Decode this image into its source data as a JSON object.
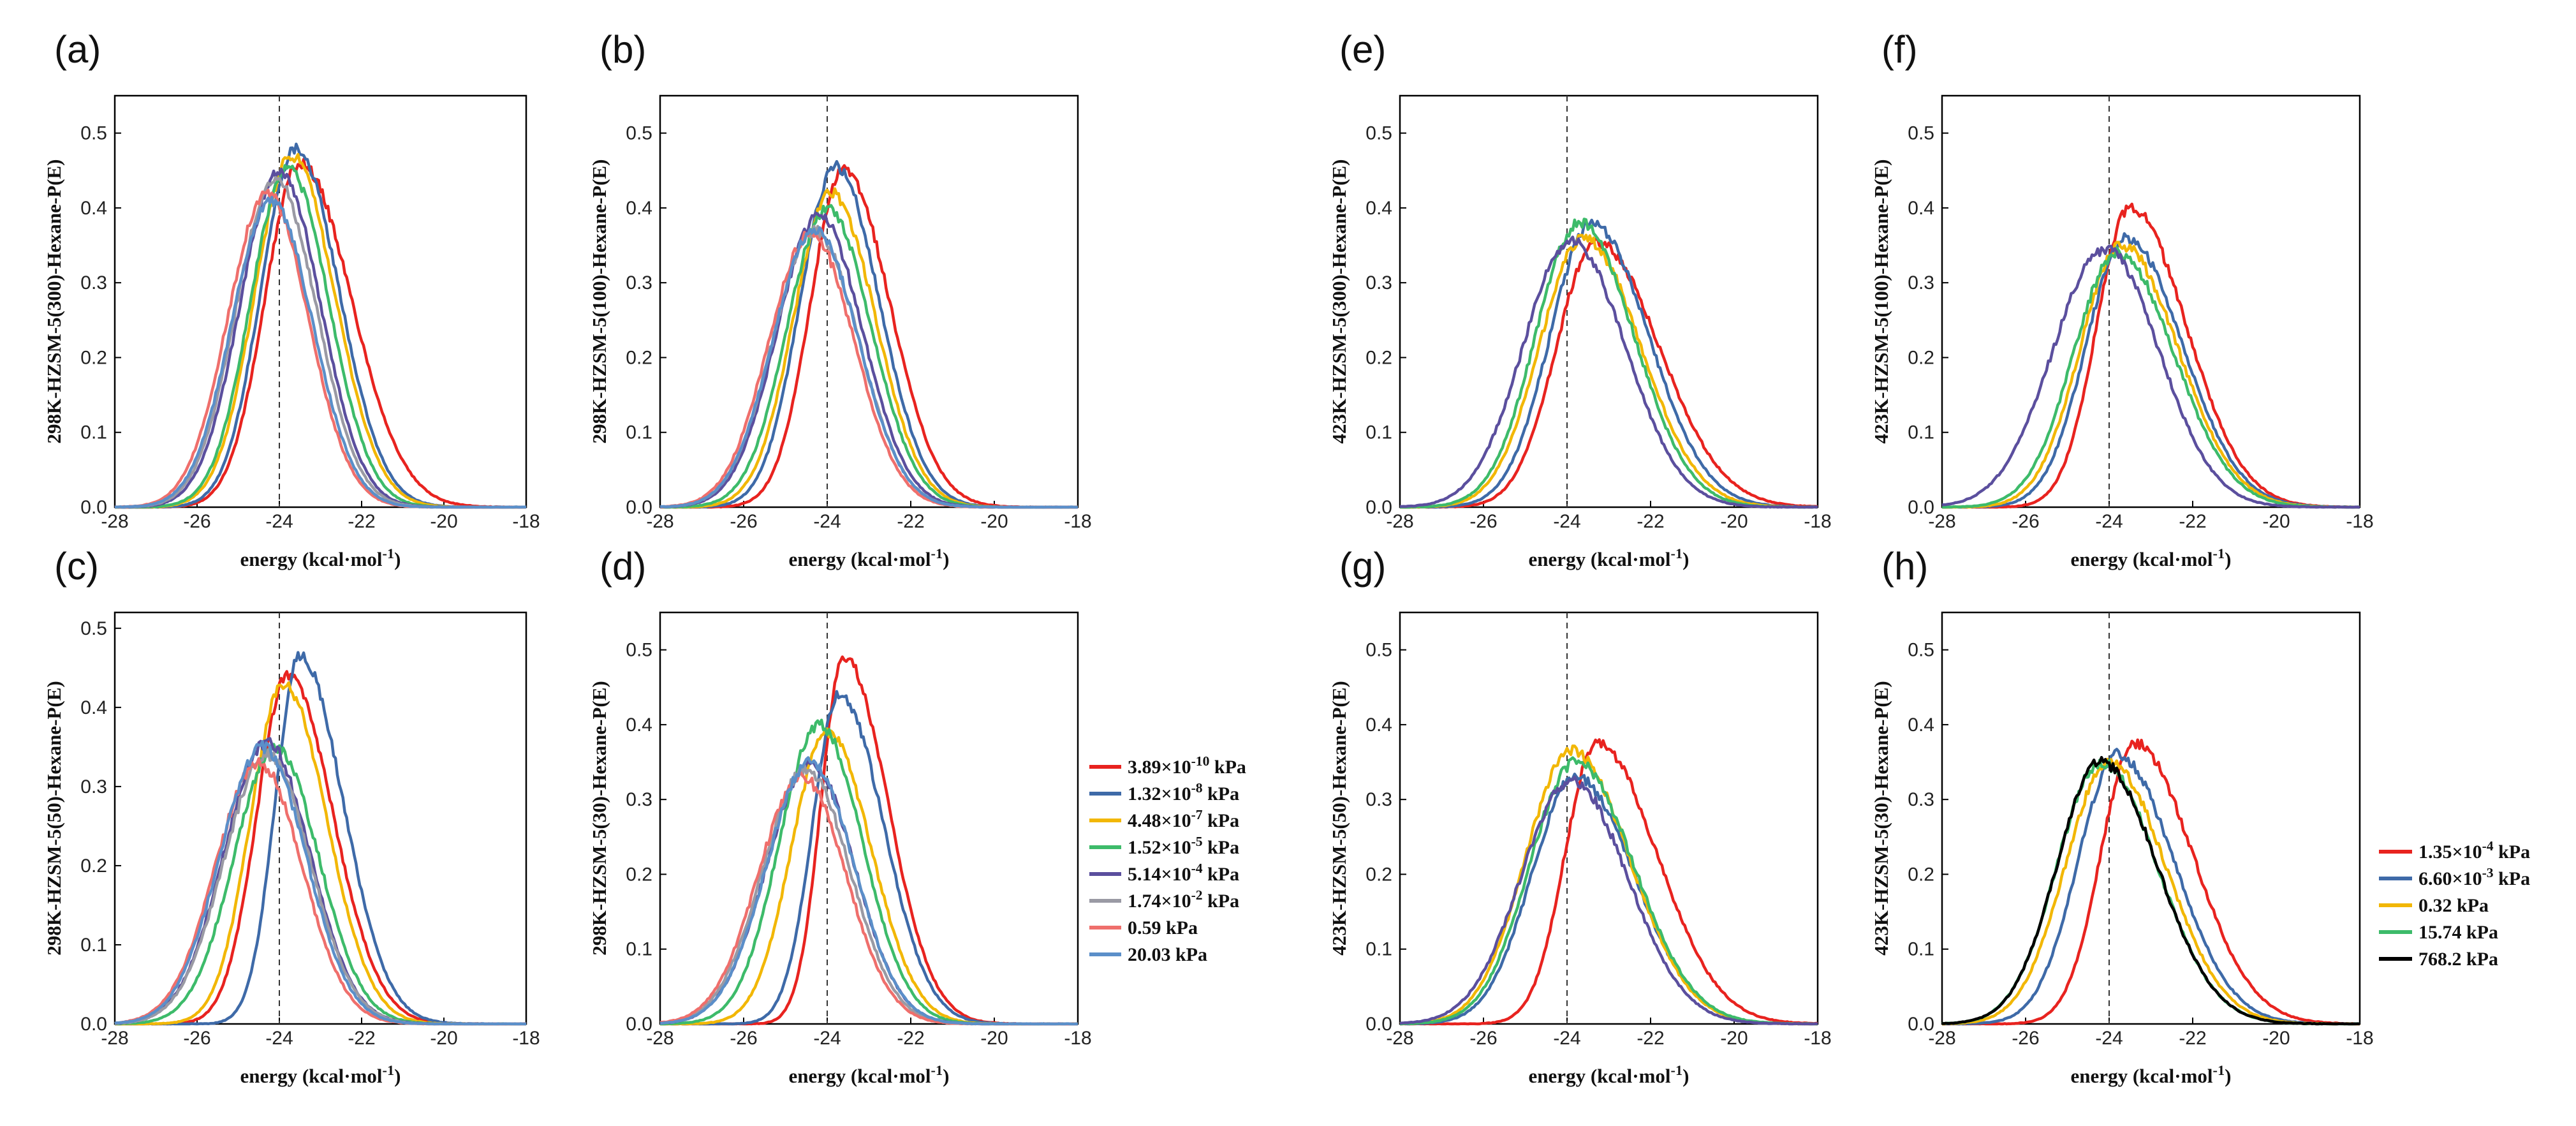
{
  "chart_data": [
    {
      "id": "a",
      "panel_label": "(a)",
      "type": "line",
      "ylabel": "298K-HZSM-5(300)-Hexane-P(E)",
      "xlabel": "energy (kcal·mol⁻¹)",
      "xlim": [
        -28,
        -18
      ],
      "ylim": [
        0,
        0.55
      ],
      "xticks": [
        "-28",
        "-26",
        "-24",
        "-22",
        "-20",
        "-18"
      ],
      "yticks": [
        "0.0",
        "0.1",
        "0.2",
        "0.3",
        "0.4",
        "0.5"
      ],
      "reference_line_x": -24,
      "series": [
        {
          "name": "3.89×10⁻¹⁰ kPa",
          "color": "#e8231f",
          "peak_x": -23.5,
          "peak_y": 0.46,
          "sigma_left": 0.85,
          "sigma_right": 1.25
        },
        {
          "name": "1.32×10⁻⁸ kPa",
          "color": "#3e6aa8",
          "peak_x": -23.6,
          "peak_y": 0.48,
          "sigma_left": 0.85,
          "sigma_right": 1.05
        },
        {
          "name": "4.48×10⁻⁷ kPa",
          "color": "#f2b705",
          "peak_x": -23.7,
          "peak_y": 0.47,
          "sigma_left": 0.9,
          "sigma_right": 1.05
        },
        {
          "name": "1.52×10⁻⁵ kPa",
          "color": "#3dbb6a",
          "peak_x": -23.8,
          "peak_y": 0.455,
          "sigma_left": 0.9,
          "sigma_right": 1.0
        },
        {
          "name": "5.14×10⁻⁴ kPa",
          "color": "#5b4f9e",
          "peak_x": -24.0,
          "peak_y": 0.45,
          "sigma_left": 0.95,
          "sigma_right": 1.0
        },
        {
          "name": "1.74×10⁻² kPa",
          "color": "#9a9aa4",
          "peak_x": -24.1,
          "peak_y": 0.44,
          "sigma_left": 0.95,
          "sigma_right": 1.0
        },
        {
          "name": "0.59 kPa",
          "color": "#ef6f6c",
          "peak_x": -24.3,
          "peak_y": 0.42,
          "sigma_left": 0.95,
          "sigma_right": 1.0
        },
        {
          "name": "20.03 kPa",
          "color": "#5b8fc9",
          "peak_x": -24.2,
          "peak_y": 0.41,
          "sigma_left": 0.95,
          "sigma_right": 1.0
        }
      ]
    },
    {
      "id": "b",
      "panel_label": "(b)",
      "type": "line",
      "ylabel": "298K-HZSM-5(100)-Hexane-P(E)",
      "xlabel": "energy (kcal·mol⁻¹)",
      "xlim": [
        -28,
        -18
      ],
      "ylim": [
        0,
        0.55
      ],
      "xticks": [
        "-28",
        "-26",
        "-24",
        "-22",
        "-20",
        "-18"
      ],
      "yticks": [
        "0.0",
        "0.1",
        "0.2",
        "0.3",
        "0.4",
        "0.5"
      ],
      "reference_line_x": -24,
      "series": [
        {
          "name": "3.89×10⁻¹⁰ kPa",
          "color": "#e8231f",
          "peak_x": -23.6,
          "peak_y": 0.45,
          "sigma_left": 0.8,
          "sigma_right": 1.1
        },
        {
          "name": "1.32×10⁻⁸ kPa",
          "color": "#3e6aa8",
          "peak_x": -23.8,
          "peak_y": 0.455,
          "sigma_left": 0.85,
          "sigma_right": 1.05
        },
        {
          "name": "4.48×10⁻⁷ kPa",
          "color": "#f2b705",
          "peak_x": -23.9,
          "peak_y": 0.42,
          "sigma_left": 0.9,
          "sigma_right": 1.05
        },
        {
          "name": "1.52×10⁻⁵ kPa",
          "color": "#3dbb6a",
          "peak_x": -24.0,
          "peak_y": 0.4,
          "sigma_left": 0.95,
          "sigma_right": 1.05
        },
        {
          "name": "5.14×10⁻⁴ kPa",
          "color": "#5b4f9e",
          "peak_x": -24.2,
          "peak_y": 0.39,
          "sigma_left": 1.0,
          "sigma_right": 1.05
        },
        {
          "name": "1.74×10⁻² kPa",
          "color": "#9a9aa4",
          "peak_x": -24.3,
          "peak_y": 0.37,
          "sigma_left": 1.0,
          "sigma_right": 1.05
        },
        {
          "name": "0.59 kPa",
          "color": "#ef6f6c",
          "peak_x": -24.4,
          "peak_y": 0.365,
          "sigma_left": 1.0,
          "sigma_right": 1.05
        },
        {
          "name": "20.03 kPa",
          "color": "#5b8fc9",
          "peak_x": -24.3,
          "peak_y": 0.37,
          "sigma_left": 1.0,
          "sigma_right": 1.05
        }
      ]
    },
    {
      "id": "c",
      "panel_label": "(c)",
      "type": "line",
      "ylabel": "298K-HZSM-5(50)-Hexane-P(E)",
      "xlabel": "energy (kcal·mol⁻¹)",
      "xlim": [
        -28,
        -18
      ],
      "ylim": [
        0,
        0.52
      ],
      "xticks": [
        "-28",
        "-26",
        "-24",
        "-22",
        "-20",
        "-18"
      ],
      "yticks": [
        "0.0",
        "0.1",
        "0.2",
        "0.3",
        "0.4",
        "0.5"
      ],
      "reference_line_x": -24,
      "series": [
        {
          "name": "3.89×10⁻¹⁰ kPa",
          "color": "#e8231f",
          "peak_x": -23.8,
          "peak_y": 0.44,
          "sigma_left": 0.75,
          "sigma_right": 1.1
        },
        {
          "name": "1.32×10⁻⁸ kPa",
          "color": "#3e6aa8",
          "peak_x": -23.5,
          "peak_y": 0.465,
          "sigma_left": 0.6,
          "sigma_right": 1.05
        },
        {
          "name": "4.48×10⁻⁷ kPa",
          "color": "#f2b705",
          "peak_x": -23.9,
          "peak_y": 0.43,
          "sigma_left": 0.8,
          "sigma_right": 1.05
        },
        {
          "name": "1.52×10⁻⁵ kPa",
          "color": "#3dbb6a",
          "peak_x": -24.1,
          "peak_y": 0.35,
          "sigma_left": 1.0,
          "sigma_right": 1.05
        },
        {
          "name": "5.14×10⁻⁴ kPa",
          "color": "#5b4f9e",
          "peak_x": -24.3,
          "peak_y": 0.355,
          "sigma_left": 1.05,
          "sigma_right": 1.05
        },
        {
          "name": "1.74×10⁻² kPa",
          "color": "#9a9aa4",
          "peak_x": -24.3,
          "peak_y": 0.34,
          "sigma_left": 1.05,
          "sigma_right": 1.05
        },
        {
          "name": "0.59 kPa",
          "color": "#ef6f6c",
          "peak_x": -24.5,
          "peak_y": 0.33,
          "sigma_left": 1.05,
          "sigma_right": 1.05
        },
        {
          "name": "20.03 kPa",
          "color": "#5b8fc9",
          "peak_x": -24.4,
          "peak_y": 0.35,
          "sigma_left": 1.05,
          "sigma_right": 1.05
        }
      ]
    },
    {
      "id": "d",
      "panel_label": "(d)",
      "type": "line",
      "ylabel": "298K-HZSM-5(30)-Hexane-P(E)",
      "xlabel": "energy (kcal·mol⁻¹)",
      "xlim": [
        -28,
        -18
      ],
      "ylim": [
        0,
        0.55
      ],
      "xticks": [
        "-28",
        "-26",
        "-24",
        "-22",
        "-20",
        "-18"
      ],
      "yticks": [
        "0.0",
        "0.1",
        "0.2",
        "0.3",
        "0.4",
        "0.5"
      ],
      "reference_line_x": -24,
      "series": [
        {
          "name": "3.89×10⁻¹⁰ kPa",
          "color": "#e8231f",
          "peak_x": -23.6,
          "peak_y": 0.49,
          "sigma_left": 0.55,
          "sigma_right": 1.05
        },
        {
          "name": "1.32×10⁻⁸ kPa",
          "color": "#3e6aa8",
          "peak_x": -23.7,
          "peak_y": 0.44,
          "sigma_left": 0.65,
          "sigma_right": 1.05
        },
        {
          "name": "4.48×10⁻⁷ kPa",
          "color": "#f2b705",
          "peak_x": -24.0,
          "peak_y": 0.39,
          "sigma_left": 0.85,
          "sigma_right": 1.05
        },
        {
          "name": "1.52×10⁻⁵ kPa",
          "color": "#3dbb6a",
          "peak_x": -24.2,
          "peak_y": 0.4,
          "sigma_left": 0.95,
          "sigma_right": 1.05
        },
        {
          "name": "5.14×10⁻⁴ kPa",
          "color": "#5b4f9e",
          "peak_x": -24.4,
          "peak_y": 0.35,
          "sigma_left": 1.05,
          "sigma_right": 1.05
        },
        {
          "name": "1.74×10⁻² kPa",
          "color": "#9a9aa4",
          "peak_x": -24.5,
          "peak_y": 0.34,
          "sigma_left": 1.05,
          "sigma_right": 1.05
        },
        {
          "name": "0.59 kPa",
          "color": "#ef6f6c",
          "peak_x": -24.6,
          "peak_y": 0.33,
          "sigma_left": 1.05,
          "sigma_right": 1.05
        },
        {
          "name": "20.03 kPa",
          "color": "#5b8fc9",
          "peak_x": -24.4,
          "peak_y": 0.35,
          "sigma_left": 1.05,
          "sigma_right": 1.05
        }
      ]
    },
    {
      "id": "e",
      "panel_label": "(e)",
      "type": "line",
      "ylabel": "423K-HZSM-5(300)-Hexane-P(E)",
      "xlabel": "energy (kcal·mol⁻¹)",
      "xlim": [
        -28,
        -18
      ],
      "ylim": [
        0,
        0.55
      ],
      "xticks": [
        "-28",
        "-26",
        "-24",
        "-22",
        "-20",
        "-18"
      ],
      "yticks": [
        "0.0",
        "0.1",
        "0.2",
        "0.3",
        "0.4",
        "0.5"
      ],
      "reference_line_x": -24,
      "series": [
        {
          "name": "1.35×10⁻⁴ kPa",
          "color": "#e8231f",
          "peak_x": -23.3,
          "peak_y": 0.355,
          "sigma_left": 0.95,
          "sigma_right": 1.5
        },
        {
          "name": "6.60×10⁻³ kPa",
          "color": "#3e6aa8",
          "peak_x": -23.4,
          "peak_y": 0.38,
          "sigma_left": 1.0,
          "sigma_right": 1.35
        },
        {
          "name": "0.32 kPa",
          "color": "#f2b705",
          "peak_x": -23.6,
          "peak_y": 0.36,
          "sigma_left": 1.05,
          "sigma_right": 1.35
        },
        {
          "name": "15.74 kPa",
          "color": "#3dbb6a",
          "peak_x": -23.7,
          "peak_y": 0.38,
          "sigma_left": 1.05,
          "sigma_right": 1.3
        },
        {
          "name": "768.2 kPa",
          "color": "#5b4f9e",
          "peak_x": -23.9,
          "peak_y": 0.355,
          "sigma_left": 1.15,
          "sigma_right": 1.3
        }
      ]
    },
    {
      "id": "f",
      "panel_label": "(f)",
      "type": "line",
      "ylabel": "423K-HZSM-5(100)-Hexane-P(E)",
      "xlabel": "energy (kcal·mol⁻¹)",
      "xlim": [
        -28,
        -18
      ],
      "ylim": [
        0,
        0.55
      ],
      "xticks": [
        "-28",
        "-26",
        "-24",
        "-22",
        "-20",
        "-18"
      ],
      "yticks": [
        "0.0",
        "0.1",
        "0.2",
        "0.3",
        "0.4",
        "0.5"
      ],
      "reference_line_x": -24,
      "series": [
        {
          "name": "1.35×10⁻⁴ kPa",
          "color": "#e8231f",
          "peak_x": -23.5,
          "peak_y": 0.4,
          "sigma_left": 0.8,
          "sigma_right": 1.35
        },
        {
          "name": "6.60×10⁻³ kPa",
          "color": "#3e6aa8",
          "peak_x": -23.6,
          "peak_y": 0.36,
          "sigma_left": 0.95,
          "sigma_right": 1.35
        },
        {
          "name": "0.32 kPa",
          "color": "#f2b705",
          "peak_x": -23.7,
          "peak_y": 0.35,
          "sigma_left": 1.0,
          "sigma_right": 1.35
        },
        {
          "name": "15.74 kPa",
          "color": "#3dbb6a",
          "peak_x": -23.8,
          "peak_y": 0.34,
          "sigma_left": 1.05,
          "sigma_right": 1.35
        },
        {
          "name": "768.2 kPa",
          "color": "#5b4f9e",
          "peak_x": -24.1,
          "peak_y": 0.345,
          "sigma_left": 1.25,
          "sigma_right": 1.3
        }
      ]
    },
    {
      "id": "g",
      "panel_label": "(g)",
      "type": "line",
      "ylabel": "423K-HZSM-5(50)-Hexane-P(E)",
      "xlabel": "energy (kcal·mol⁻¹)",
      "xlim": [
        -28,
        -18
      ],
      "ylim": [
        0,
        0.55
      ],
      "xticks": [
        "-28",
        "-26",
        "-24",
        "-22",
        "-20",
        "-18"
      ],
      "yticks": [
        "0.0",
        "0.1",
        "0.2",
        "0.3",
        "0.4",
        "0.5"
      ],
      "reference_line_x": -24,
      "series": [
        {
          "name": "1.35×10⁻⁴ kPa",
          "color": "#e8231f",
          "peak_x": -23.3,
          "peak_y": 0.375,
          "sigma_left": 0.75,
          "sigma_right": 1.45
        },
        {
          "name": "6.60×10⁻³ kPa",
          "color": "#3e6aa8",
          "peak_x": -23.8,
          "peak_y": 0.33,
          "sigma_left": 1.05,
          "sigma_right": 1.4
        },
        {
          "name": "0.32 kPa",
          "color": "#f2b705",
          "peak_x": -23.9,
          "peak_y": 0.365,
          "sigma_left": 1.1,
          "sigma_right": 1.4
        },
        {
          "name": "15.74 kPa",
          "color": "#3dbb6a",
          "peak_x": -23.8,
          "peak_y": 0.35,
          "sigma_left": 1.1,
          "sigma_right": 1.4
        },
        {
          "name": "768.2 kPa",
          "color": "#5b4f9e",
          "peak_x": -23.9,
          "peak_y": 0.325,
          "sigma_left": 1.2,
          "sigma_right": 1.35
        }
      ]
    },
    {
      "id": "h",
      "panel_label": "(h)",
      "type": "line",
      "ylabel": "423K-HZSM-5(30)-Hexane-P(E)",
      "xlabel": "energy (kcal·mol⁻¹)",
      "xlim": [
        -28,
        -18
      ],
      "ylim": [
        0,
        0.55
      ],
      "xticks": [
        "-28",
        "-26",
        "-24",
        "-22",
        "-20",
        "-18"
      ],
      "yticks": [
        "0.0",
        "0.1",
        "0.2",
        "0.3",
        "0.4",
        "0.5"
      ],
      "reference_line_x": -24,
      "series": [
        {
          "name": "1.35×10⁻⁴ kPa",
          "color": "#e8231f",
          "peak_x": -23.4,
          "peak_y": 0.375,
          "sigma_left": 0.8,
          "sigma_right": 1.4
        },
        {
          "name": "6.60×10⁻³ kPa",
          "color": "#3e6aa8",
          "peak_x": -23.8,
          "peak_y": 0.36,
          "sigma_left": 0.95,
          "sigma_right": 1.35
        },
        {
          "name": "0.32 kPa",
          "color": "#f2b705",
          "peak_x": -24.0,
          "peak_y": 0.35,
          "sigma_left": 1.05,
          "sigma_right": 1.35
        },
        {
          "name": "15.74 kPa",
          "color": "#3dbb6a",
          "peak_x": -24.2,
          "peak_y": 0.35,
          "sigma_left": 1.05,
          "sigma_right": 1.35
        },
        {
          "name": "768.2 kPa",
          "color": "#000000",
          "peak_x": -24.2,
          "peak_y": 0.35,
          "sigma_left": 1.05,
          "sigma_right": 1.35
        }
      ]
    }
  ],
  "legends": {
    "298K": {
      "entries": [
        {
          "label": "3.89×10⁻¹⁰ kPa",
          "color": "#e8231f"
        },
        {
          "label": "1.32×10⁻⁸ kPa",
          "color": "#3e6aa8"
        },
        {
          "label": "4.48×10⁻⁷ kPa",
          "color": "#f2b705"
        },
        {
          "label": "1.52×10⁻⁵ kPa",
          "color": "#3dbb6a"
        },
        {
          "label": "5.14×10⁻⁴ kPa",
          "color": "#5b4f9e"
        },
        {
          "label": "1.74×10⁻² kPa",
          "color": "#9a9aa4"
        },
        {
          "label": "0.59 kPa",
          "color": "#ef6f6c"
        },
        {
          "label": "20.03 kPa",
          "color": "#5b8fc9"
        }
      ]
    },
    "423K": {
      "entries": [
        {
          "label": "1.35×10⁻⁴ kPa",
          "color": "#e8231f"
        },
        {
          "label": "6.60×10⁻³ kPa",
          "color": "#3e6aa8"
        },
        {
          "label": "0.32 kPa",
          "color": "#f2b705"
        },
        {
          "label": "15.74 kPa",
          "color": "#3dbb6a"
        },
        {
          "label": "768.2 kPa",
          "color": "#000000"
        }
      ]
    }
  }
}
